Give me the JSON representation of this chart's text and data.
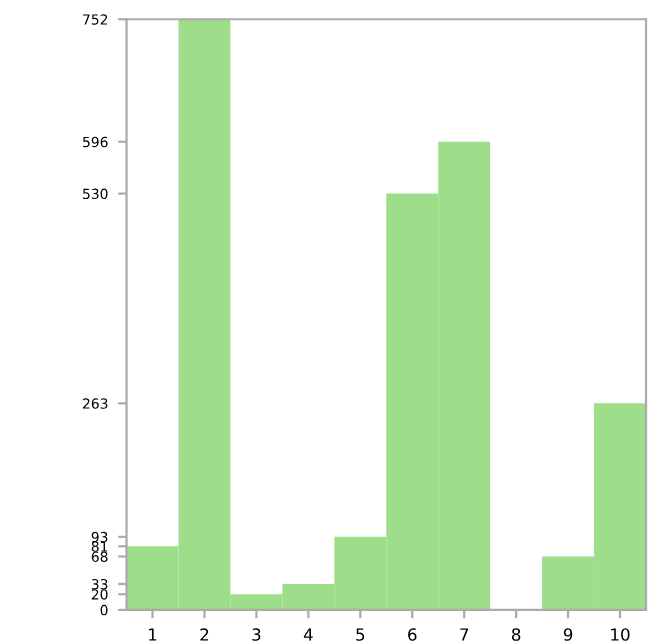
{
  "chart_data": {
    "type": "bar",
    "categories": [
      "1",
      "2",
      "3",
      "4",
      "5",
      "6",
      "7",
      "8",
      "9",
      "10"
    ],
    "values": [
      81,
      752,
      20,
      33,
      93,
      530,
      596,
      0,
      68,
      263
    ],
    "color": "#9ede8a",
    "ylim": [
      0,
      752
    ],
    "yticks": [
      0,
      20,
      33,
      68,
      81,
      93,
      263,
      530,
      596,
      752
    ],
    "grid": false
  }
}
